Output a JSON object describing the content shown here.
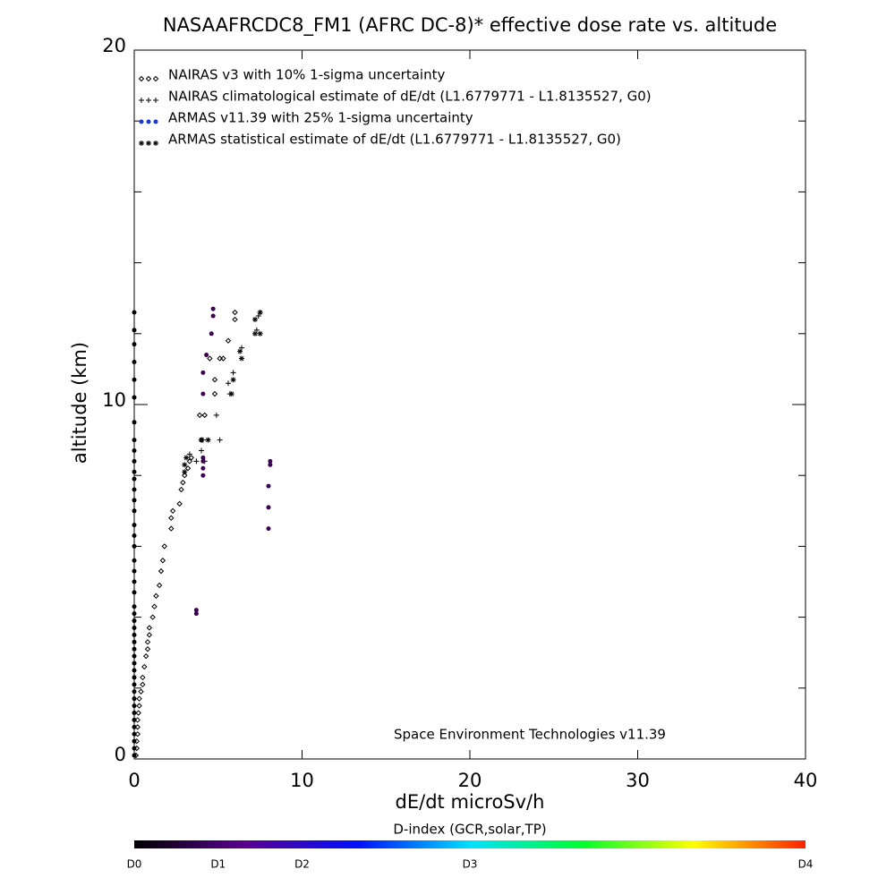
{
  "chart_data": {
    "type": "scatter",
    "title": "NASAAFRCDC8_FM1 (AFRC DC-8)* effective dose rate vs. altitude",
    "x_label": "dE/dt microSv/h",
    "y_label": "altitude (km)",
    "annotation": "Space Environment Technologies v11.39",
    "xlim": [
      0,
      40
    ],
    "ylim": [
      0,
      20
    ],
    "xticks": [
      0,
      10,
      20,
      30,
      40
    ],
    "yticks": [
      0,
      10,
      20
    ],
    "yminorticks": [
      2,
      4,
      6,
      8,
      12,
      14,
      16,
      18
    ],
    "legend_position": "upper left",
    "series": [
      {
        "name": "NAIRAS v3 with 10% 1-sigma uncertainty",
        "marker": "diamond",
        "color": "#000000",
        "x": [
          0.1,
          0.15,
          0.15,
          0.2,
          0.2,
          0.2,
          0.25,
          0.3,
          0.3,
          0.4,
          0.5,
          0.5,
          0.6,
          0.7,
          0.8,
          0.8,
          0.9,
          0.9,
          1.1,
          1.2,
          1.3,
          1.5,
          1.6,
          1.7,
          1.8,
          2.2,
          2.2,
          2.3,
          2.7,
          2.8,
          2.9,
          3.0,
          3.2,
          3.3,
          3.4,
          3.9,
          4.0,
          4.2,
          4.8,
          4.8,
          5.1,
          5.6,
          6.0,
          6.0,
          5.3,
          4.5
        ],
        "values": [
          0.1,
          0.3,
          0.5,
          0.7,
          0.9,
          1.1,
          1.3,
          1.5,
          1.7,
          1.9,
          2.1,
          2.3,
          2.6,
          2.9,
          3.1,
          3.3,
          3.5,
          3.7,
          4.0,
          4.3,
          4.6,
          4.9,
          5.3,
          5.6,
          6.0,
          6.5,
          6.8,
          7.0,
          7.2,
          7.6,
          7.8,
          8.0,
          8.2,
          8.4,
          8.5,
          9.7,
          9.0,
          9.7,
          10.3,
          10.7,
          11.3,
          11.8,
          12.4,
          12.6,
          11.3,
          11.3
        ]
      },
      {
        "name": "NAIRAS climatological estimate of dE/dt (L1.6779771 - L1.8135527, G0)",
        "marker": "plus",
        "color": "#000000",
        "x": [
          3.3,
          4.0,
          4.1,
          4.9,
          5.1,
          5.6,
          5.9,
          5.7,
          6.4,
          7.3,
          7.4,
          7.5,
          3.7,
          4.2
        ],
        "values": [
          8.6,
          8.7,
          9.0,
          9.7,
          9.0,
          10.6,
          10.9,
          10.3,
          11.6,
          12.1,
          12.5,
          12.6,
          8.4,
          8.4
        ]
      },
      {
        "name": "ARMAS v11.39 with 25% 1-sigma uncertainty",
        "marker": "dot",
        "color": "#1a3ccc",
        "x": [
          0,
          0,
          0,
          0,
          0,
          0,
          0,
          0,
          0,
          0,
          0,
          0,
          0,
          0,
          0,
          0,
          0,
          0,
          0,
          0,
          0,
          0,
          0,
          0,
          0,
          0,
          0,
          0,
          0,
          0,
          0,
          0,
          0,
          0,
          0,
          0,
          0,
          0,
          0,
          0,
          0,
          0,
          0,
          0,
          3.7,
          3.7,
          4.1,
          4.1,
          4.1,
          4.1,
          4.1,
          4.1,
          4.3,
          4.6,
          4.7,
          4.7,
          8.0,
          8.0,
          8.0,
          8.1,
          8.1
        ],
        "values": [
          0.1,
          0.3,
          0.5,
          0.7,
          0.9,
          1.1,
          1.3,
          1.5,
          1.7,
          1.9,
          2.1,
          2.3,
          2.5,
          2.7,
          2.9,
          3.1,
          3.3,
          3.5,
          3.7,
          3.9,
          4.1,
          4.3,
          4.7,
          5.0,
          5.3,
          5.6,
          6.0,
          6.3,
          6.6,
          7.0,
          7.3,
          7.6,
          7.9,
          8.1,
          8.4,
          8.7,
          9.0,
          9.5,
          10.2,
          10.7,
          11.2,
          11.7,
          12.1,
          12.6,
          4.1,
          4.2,
          8.0,
          8.2,
          8.5,
          8.4,
          10.3,
          10.9,
          11.4,
          12.0,
          12.5,
          12.7,
          6.5,
          7.1,
          7.7,
          8.3,
          8.4
        ],
        "colors": [
          "#000000",
          "#000000",
          "#000000",
          "#000000",
          "#000000",
          "#000000",
          "#000000",
          "#000000",
          "#000000",
          "#000000",
          "#000000",
          "#000000",
          "#000000",
          "#000000",
          "#000000",
          "#000000",
          "#000000",
          "#000000",
          "#000000",
          "#000000",
          "#000000",
          "#000000",
          "#000000",
          "#000000",
          "#000000",
          "#000000",
          "#000000",
          "#000000",
          "#000000",
          "#000000",
          "#000000",
          "#000000",
          "#000000",
          "#000000",
          "#000000",
          "#000000",
          "#000000",
          "#000000",
          "#000000",
          "#000000",
          "#000000",
          "#000000",
          "#000000",
          "#000000",
          "#3c0050",
          "#3c0050",
          "#3c0050",
          "#3c0050",
          "#3c0050",
          "#3c0050",
          "#3c0050",
          "#3c0050",
          "#3c0050",
          "#3c0050",
          "#3c0050",
          "#3c0050",
          "#3c0050",
          "#3c0050",
          "#3c0050",
          "#3c0050",
          "#3c0050"
        ]
      },
      {
        "name": "ARMAS statistical estimate of dE/dt (L1.6779771 - L1.8135527, G0)",
        "marker": "star",
        "color": "#000000",
        "x": [
          3.0,
          3.1,
          4.0,
          4.4,
          5.8,
          5.9,
          6.4,
          6.3,
          7.2,
          7.5,
          7.2,
          7.5,
          3.0
        ],
        "values": [
          8.3,
          8.5,
          9.0,
          9.0,
          10.3,
          10.7,
          11.3,
          11.5,
          12.0,
          12.0,
          12.4,
          12.6,
          8.1
        ]
      }
    ],
    "colorbar": {
      "label": "D-index (GCR,solar,TP)",
      "lim": [
        0,
        8
      ],
      "colors": [
        "#000000",
        "#5a0090",
        "#0010ff",
        "#00e0ff",
        "#00ff30",
        "#ffff00",
        "#ff2000"
      ],
      "ticks": [
        {
          "value": 0,
          "label": "D0"
        },
        {
          "value": 1,
          "label": "D1"
        },
        {
          "value": 2,
          "label": "D2"
        },
        {
          "value": 4,
          "label": "D3"
        },
        {
          "value": 8,
          "label": "D4"
        }
      ]
    }
  }
}
